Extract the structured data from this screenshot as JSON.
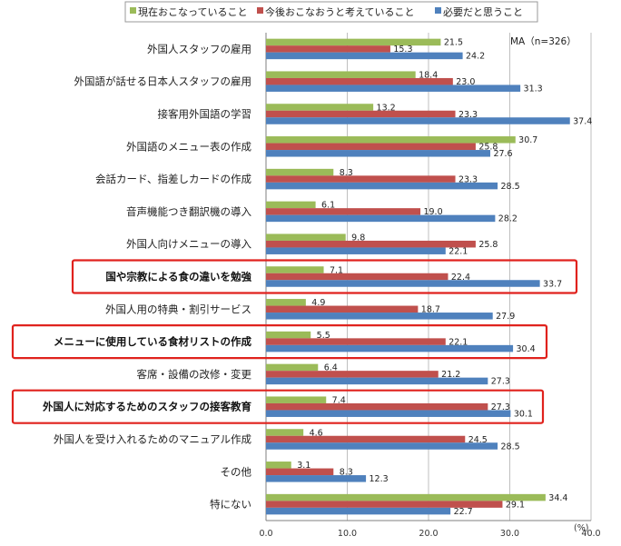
{
  "chart_data": {
    "type": "bar",
    "orientation": "horizontal",
    "note": "MA（n=326）",
    "unit_label": "(%)",
    "xlim": [
      0,
      40
    ],
    "xticks": [
      "0.0",
      "10.0",
      "20.0",
      "30.0",
      "40.0"
    ],
    "grid": true,
    "legend_position": "top",
    "series": [
      {
        "name": "現在おこなっていること",
        "color": "#9bbb59"
      },
      {
        "name": "今後おこなおうと考えていること",
        "color": "#c0504d"
      },
      {
        "name": "必要だと思うこと",
        "color": "#4f81bd"
      }
    ],
    "categories": [
      {
        "label": "外国人スタッフの雇用",
        "values": [
          21.5,
          15.3,
          24.2
        ],
        "highlight": false
      },
      {
        "label": "外国語が話せる日本人スタッフの雇用",
        "values": [
          18.4,
          23.0,
          31.3
        ],
        "highlight": false
      },
      {
        "label": "接客用外国語の学習",
        "values": [
          13.2,
          23.3,
          37.4
        ],
        "highlight": false
      },
      {
        "label": "外国語のメニュー表の作成",
        "values": [
          30.7,
          25.8,
          27.6
        ],
        "highlight": false
      },
      {
        "label": "会話カード、指差しカードの作成",
        "values": [
          8.3,
          23.3,
          28.5
        ],
        "highlight": false
      },
      {
        "label": "音声機能つき翻訳機の導入",
        "values": [
          6.1,
          19.0,
          28.2
        ],
        "highlight": false
      },
      {
        "label": "外国人向けメニューの導入",
        "values": [
          9.8,
          25.8,
          22.1
        ],
        "highlight": false
      },
      {
        "label": "国や宗教による食の違いを勉強",
        "values": [
          7.1,
          22.4,
          33.7
        ],
        "highlight": true
      },
      {
        "label": "外国人用の特典・割引サービス",
        "values": [
          4.9,
          18.7,
          27.9
        ],
        "highlight": false
      },
      {
        "label": "メニューに使用している食材リストの作成",
        "values": [
          5.5,
          22.1,
          30.4
        ],
        "highlight": true
      },
      {
        "label": "客席・設備の改修・変更",
        "values": [
          6.4,
          21.2,
          27.3
        ],
        "highlight": false
      },
      {
        "label": "外国人に対応するためのスタッフの接客教育",
        "values": [
          7.4,
          27.3,
          30.1
        ],
        "highlight": true
      },
      {
        "label": "外国人を受け入れるためのマニュアル作成",
        "values": [
          4.6,
          24.5,
          28.5
        ],
        "highlight": false
      },
      {
        "label": "その他",
        "values": [
          3.1,
          8.3,
          12.3
        ],
        "highlight": false
      },
      {
        "label": "特にない",
        "values": [
          34.4,
          29.1,
          22.7
        ],
        "highlight": false
      }
    ]
  }
}
